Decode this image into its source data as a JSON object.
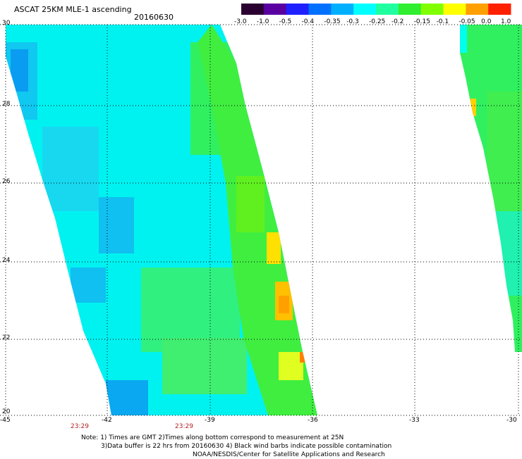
{
  "header": {
    "title": "ASCAT 25KM MLE-1 ascending",
    "date": "20160630"
  },
  "colorbar": {
    "labels": [
      "-3.0",
      "-1.0",
      "-0.5",
      "-0.4",
      "-0.35",
      "-0.3",
      "-0.25",
      "-0.2",
      "-0.15",
      "-0.1",
      "-0.05",
      "0.0",
      "1.0"
    ],
    "colors": [
      "#2a0030",
      "#5a00a0",
      "#2020ff",
      "#0070ff",
      "#00b0ff",
      "#00ffff",
      "#20ffa0",
      "#30ee30",
      "#80ff00",
      "#ffff00",
      "#ffa000",
      "#ff2000"
    ]
  },
  "map": {
    "lat_labels": [
      "30",
      "28",
      "26",
      "24",
      "22",
      "20"
    ],
    "lon_labels": [
      "-45",
      "-42",
      "-39",
      "-36",
      "-33",
      "-30"
    ],
    "lat_range": [
      20,
      30
    ],
    "lon_range": [
      -45,
      -30
    ],
    "grid": true,
    "swath_colors": {
      "cyan": "#00ffee",
      "aqua": "#00e6ff",
      "blue": "#0aa0f0",
      "green": "#30f050",
      "lime": "#50ff20",
      "yellow": "#ffd800",
      "orange": "#ffa000"
    }
  },
  "times": [
    "23:29",
    "23:29"
  ],
  "notes": [
    "Note: 1) Times are GMT 2)Times along bottom correspond to measurement at 25N",
    "3)Data buffer is 22 hrs from 20160630 4) Black wind barbs indicate possible contamination",
    "NOAA/NESDIS/Center for Satellite Applications and Research"
  ]
}
